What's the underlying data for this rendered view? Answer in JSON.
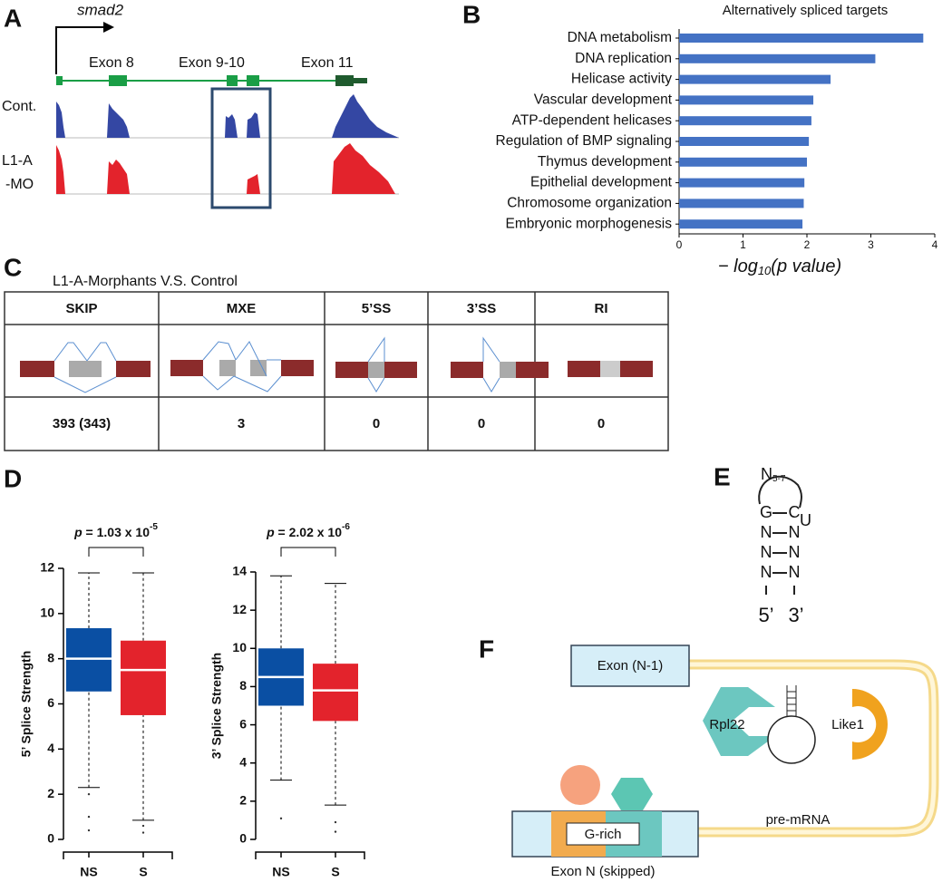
{
  "panel_labels": [
    "A",
    "B",
    "C",
    "D",
    "E",
    "F"
  ],
  "panel_a": {
    "gene": "smad2",
    "exons": [
      "Exon 8",
      "Exon 9-10",
      "Exon 11"
    ],
    "tracks": [
      [
        "Cont."
      ],
      [
        "L1-A",
        "-MO"
      ]
    ]
  },
  "panel_c": {
    "title": "L1-A-Morphants  V.S.  Control",
    "header": [
      "SKIP",
      "MXE",
      "5’SS",
      "3’SS",
      "RI"
    ],
    "counts": [
      "393 (343)",
      3,
      0,
      0,
      0
    ]
  },
  "panel_e": {
    "loop": "N",
    "loop_sub": "5-7",
    "unpaired": "U",
    "pairs": [
      [
        "G",
        "C"
      ],
      [
        "N",
        "N"
      ],
      [
        "N",
        "N"
      ],
      [
        "N",
        "N"
      ]
    ],
    "ends": [
      "5’",
      "3’"
    ]
  },
  "panel_f": {
    "exon_upstream": "Exon (N-1)",
    "protein1": "Rpl22",
    "protein2": "Like1",
    "motif": "G-rich",
    "transcript": "pre-mRNA",
    "exon_skipped": "Exon N (skipped)"
  },
  "chart_data": [
    {
      "type": "bar",
      "orientation": "horizontal",
      "title": "Alternatively spliced targets",
      "categories": [
        "DNA metabolism",
        "DNA replication",
        "Helicase activity",
        "Vascular development",
        "ATP-dependent helicases",
        "Regulation of BMP signaling",
        "Thymus development",
        "Epithelial development",
        "Chromosome organization",
        "Embryonic morphogenesis"
      ],
      "values": [
        3.82,
        3.07,
        2.37,
        2.1,
        2.07,
        2.03,
        2.0,
        1.96,
        1.95,
        1.93
      ],
      "color": "#4472c4",
      "xlim": [
        0,
        4
      ],
      "xticks": [
        0,
        1,
        2,
        3,
        4
      ],
      "x_label": [
        "− log",
        "10",
        "(p value)"
      ]
    },
    {
      "type": "box",
      "y_label": "5’ Splice Strength",
      "categories": [
        "NS",
        "S"
      ],
      "colors": [
        "#0a4fa3",
        "#e3232c"
      ],
      "boxes": [
        {
          "low": 2.3,
          "q1": 6.55,
          "median": 8.0,
          "q3": 9.35,
          "high": 11.8,
          "outliers": [
            2.0,
            1.0,
            0.4
          ]
        },
        {
          "low": 0.85,
          "q1": 5.5,
          "median": 7.5,
          "q3": 8.8,
          "high": 11.8,
          "outliers": [
            0.6,
            0.3
          ]
        }
      ],
      "ylim": [
        0,
        12
      ],
      "yticks": [
        0,
        2,
        4,
        6,
        8,
        10,
        12
      ],
      "annotation": [
        "p",
        " = 1.03 x 10",
        "-5"
      ]
    },
    {
      "type": "box",
      "y_label": "3’ Splice Strength",
      "categories": [
        "NS",
        "S"
      ],
      "colors": [
        "#0a4fa3",
        "#e3232c"
      ],
      "boxes": [
        {
          "low": 3.1,
          "q1": 7.0,
          "median": 8.5,
          "q3": 10.0,
          "high": 13.8,
          "outliers": [
            1.1
          ]
        },
        {
          "low": 1.8,
          "q1": 6.2,
          "median": 7.8,
          "q3": 9.2,
          "high": 13.4,
          "outliers": [
            0.9,
            0.4
          ]
        }
      ],
      "ylim": [
        0,
        14
      ],
      "yticks": [
        0,
        2,
        4,
        6,
        8,
        10,
        12,
        14
      ],
      "annotation": [
        "p",
        " = 2.02 x 10",
        "-6"
      ]
    }
  ]
}
